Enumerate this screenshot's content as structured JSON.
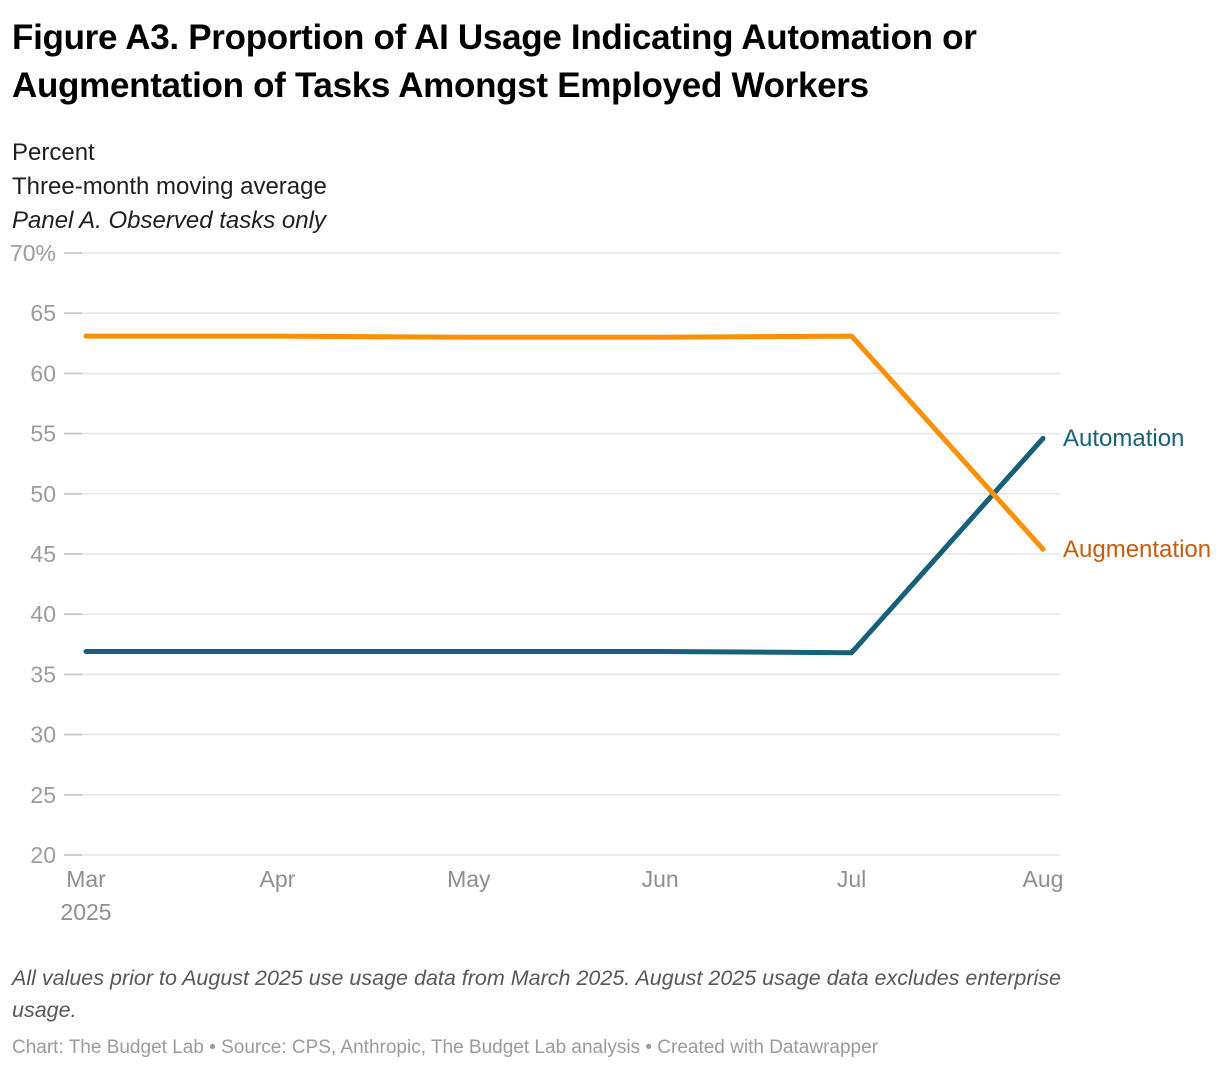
{
  "header": {
    "title_line1": "Figure A3. Proportion of AI Usage Indicating Automation or",
    "title_line2": "Augmentation of Tasks Amongst Employed Workers",
    "subtitle_unit": "Percent",
    "subtitle_measure": "Three-month moving average",
    "subtitle_panel": "Panel A. Observed tasks only"
  },
  "chart_data": {
    "type": "line",
    "title": "Figure A3. Proportion of AI Usage Indicating Automation or Augmentation of Tasks Amongst Employed Workers",
    "subtitle_lines": [
      "Percent",
      "Three-month moving average",
      "Panel A. Observed tasks only"
    ],
    "categories": [
      "Mar",
      "Apr",
      "May",
      "Jun",
      "Jul",
      "Aug"
    ],
    "x_first_tick_year": "2025",
    "ylim": [
      20,
      70
    ],
    "ytick_step": 5,
    "ytick_labels": [
      "70%",
      "65",
      "60",
      "55",
      "50",
      "45",
      "40",
      "35",
      "30",
      "25",
      "20"
    ],
    "grid": "horizontal",
    "legend_position": "right-of-line-end",
    "series": [
      {
        "name": "Automation",
        "values": [
          36.9,
          36.9,
          36.9,
          36.9,
          36.8,
          54.6
        ],
        "line_color": "#16607A",
        "label_color": "#16607A"
      },
      {
        "name": "Augmentation",
        "values": [
          63.1,
          63.1,
          63.0,
          63.0,
          63.1,
          45.4
        ],
        "line_color": "#FA9005",
        "label_color": "#C55D0F"
      }
    ]
  },
  "footer": {
    "note_line1": "All values prior to August 2025 use usage data from March 2025. August 2025 usage data excludes enterprise",
    "note_line2": "usage.",
    "note_full": "All values prior to August 2025 use usage data from March 2025. August 2025 usage data excludes enterprise usage.",
    "credit": "Chart: The Budget Lab • Source: CPS, Anthropic, The Budget Lab analysis • Created with Datawrapper"
  },
  "colors": {
    "grid": "#E6E6E6",
    "tick": "#C9C9C9",
    "y_axis_text": "#9C9C9C",
    "x_axis_text": "#8F8F8F",
    "title_text": "#000000",
    "subtitle_text": "#1E1E1E",
    "note_text": "#575757",
    "credit_text": "#9B9B9B"
  }
}
